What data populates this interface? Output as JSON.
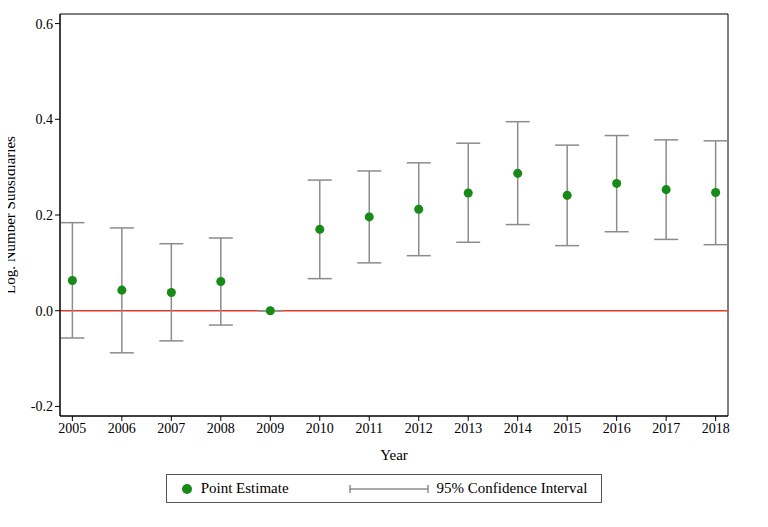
{
  "chart_data": {
    "type": "scatter",
    "x_label": "Year",
    "y_label": "Log. Number Subsidiaries",
    "x": [
      2005,
      2006,
      2007,
      2008,
      2009,
      2010,
      2011,
      2012,
      2013,
      2014,
      2015,
      2016,
      2017,
      2018
    ],
    "series": [
      {
        "name": "Point Estimate",
        "color": "#178a17",
        "marker": "circle",
        "values": [
          0.063,
          0.043,
          0.038,
          0.061,
          0.0,
          0.17,
          0.196,
          0.212,
          0.246,
          0.287,
          0.241,
          0.266,
          0.253,
          0.247
        ]
      }
    ],
    "error_bars": {
      "name": "95% Confidence Interval",
      "color": "#8c8c8c",
      "lower": [
        -0.057,
        -0.088,
        -0.063,
        -0.03,
        0.0,
        0.067,
        0.1,
        0.115,
        0.143,
        0.18,
        0.136,
        0.165,
        0.149,
        0.138
      ],
      "upper": [
        0.184,
        0.173,
        0.14,
        0.152,
        0.0,
        0.273,
        0.292,
        0.309,
        0.35,
        0.395,
        0.346,
        0.366,
        0.357,
        0.355
      ]
    },
    "hline": 0,
    "xlim": [
      2004.75,
      2018.25
    ],
    "xticks": [
      2005,
      2006,
      2007,
      2008,
      2009,
      2010,
      2011,
      2012,
      2013,
      2014,
      2015,
      2016,
      2017,
      2018
    ],
    "ylim": [
      -0.22,
      0.62
    ],
    "yticks": [
      -0.2,
      {
        "value": 0,
        "label": "0.0"
      },
      0.2,
      0.4,
      0.6
    ],
    "grid": false,
    "legend": "bottom"
  }
}
